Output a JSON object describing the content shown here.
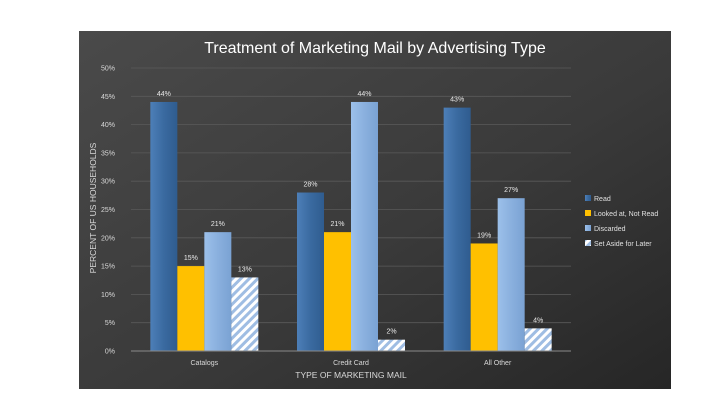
{
  "chart_data": {
    "type": "bar",
    "title": "Treatment of Marketing Mail by Advertising Type",
    "xlabel": "TYPE OF MARKETING MAIL",
    "ylabel": "PERCENT OF US HOUSEHOLDS",
    "ylim": [
      0,
      50
    ],
    "yticks": [
      "0%",
      "5%",
      "10%",
      "15%",
      "20%",
      "25%",
      "30%",
      "35%",
      "40%",
      "45%",
      "50%"
    ],
    "grid": true,
    "legend_position": "right",
    "categories": [
      "Catalogs",
      "Credit Card",
      "All Other"
    ],
    "series": [
      {
        "name": "Read",
        "values": [
          44,
          28,
          43
        ],
        "labels": [
          "44%",
          "28%",
          "43%"
        ],
        "color": "#3f6fa3",
        "pattern": "gradient-dark"
      },
      {
        "name": "Looked at, Not Read",
        "values": [
          15,
          21,
          19
        ],
        "labels": [
          "15%",
          "21%",
          "19%"
        ],
        "color": "#ffc000",
        "pattern": "solid"
      },
      {
        "name": "Discarded",
        "values": [
          21,
          44,
          27
        ],
        "labels": [
          "21%",
          "44%",
          "27%"
        ],
        "color": "#8fb4e3",
        "pattern": "gradient-light"
      },
      {
        "name": "Set Aside for Later",
        "values": [
          13,
          2,
          4
        ],
        "labels": [
          "13%",
          "2%",
          "4%"
        ],
        "color": "#b7cde8",
        "pattern": "hatch"
      }
    ],
    "background": "#3a3a3a"
  }
}
